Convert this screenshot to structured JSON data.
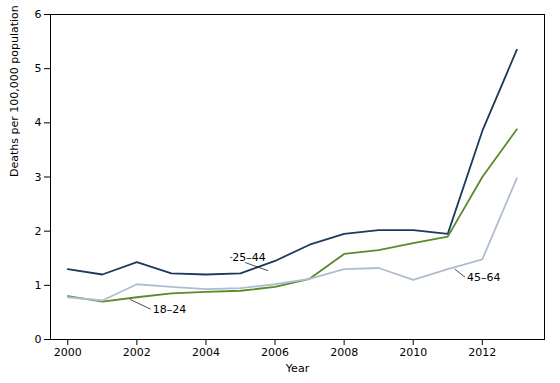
{
  "chart_data": {
    "type": "line",
    "x": [
      2000,
      2001,
      2002,
      2003,
      2004,
      2005,
      2006,
      2007,
      2008,
      2009,
      2010,
      2011,
      2012,
      2013
    ],
    "series": [
      {
        "name": "25–44",
        "color": "#1b3a5c",
        "values": [
          1.3,
          1.2,
          1.43,
          1.22,
          1.2,
          1.22,
          1.45,
          1.75,
          1.95,
          2.02,
          2.02,
          1.95,
          3.85,
          5.35
        ],
        "annotation": {
          "x": 2005.8,
          "y": 1.27,
          "text_x": 2004.7,
          "text_y": 1.52
        }
      },
      {
        "name": "18–24",
        "color": "#5a8a2a",
        "values": [
          0.8,
          0.7,
          0.78,
          0.85,
          0.88,
          0.9,
          0.97,
          1.12,
          1.58,
          1.65,
          1.78,
          1.9,
          3.0,
          3.88
        ],
        "annotation": {
          "x": 2001.8,
          "y": 0.74,
          "text_x": 2002.4,
          "text_y": 0.56
        }
      },
      {
        "name": "45–64",
        "color": "#b0bdd0",
        "values": [
          0.78,
          0.72,
          1.02,
          0.97,
          0.93,
          0.95,
          1.02,
          1.12,
          1.3,
          1.32,
          1.1,
          1.3,
          1.48,
          2.98
        ],
        "annotation": {
          "x": 2011.2,
          "y": 1.3,
          "text_x": 2011.5,
          "text_y": 1.15
        }
      }
    ],
    "xlabel": "Year",
    "ylabel": "Deaths per 100,000 population",
    "xlim": [
      1999.5,
      2013.8
    ],
    "xticks": [
      2000,
      2002,
      2004,
      2006,
      2008,
      2010,
      2012
    ],
    "ylim": [
      0,
      6
    ],
    "yticks": [
      0,
      1,
      2,
      3,
      4,
      5,
      6
    ],
    "grid": false
  }
}
